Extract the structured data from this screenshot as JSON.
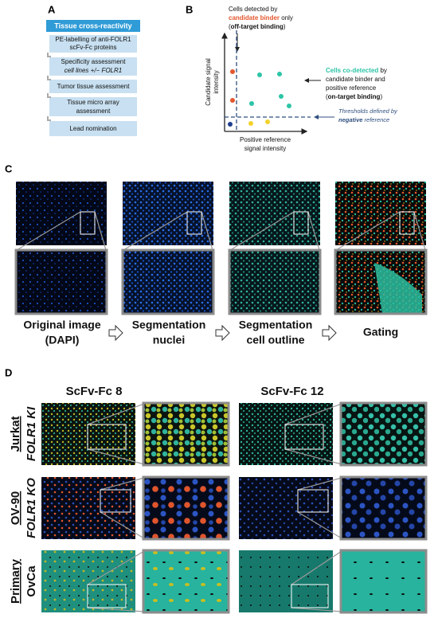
{
  "panel_a": {
    "label": "A",
    "title": "Tissue cross-reactivity",
    "steps": [
      [
        "PE-labelling of anti-FOLR1",
        "scFv-Fc proteins"
      ],
      [
        "Specificity assessment",
        "cell lines +/− FOLR1"
      ],
      [
        "Tumor tissue assessment"
      ],
      [
        "Tissue micro array",
        "assessment"
      ],
      [
        "Lead nomination"
      ]
    ]
  },
  "panel_b": {
    "label": "B",
    "off_target": {
      "line1": "Cells detected by",
      "line2a": "candidate binder",
      "line2b": " only",
      "line3a": "(",
      "line3b": "off-target binding",
      "line3c": ")"
    },
    "on_target": {
      "line1a": "Cells co-detected",
      "line1b": " by",
      "line2": "candidate binder and",
      "line3": "positive reference",
      "line4a": "(",
      "line4b": "on-target binding",
      "line4c": ")"
    },
    "threshold": {
      "line1": "Thresholds defined by",
      "line2a": "negative",
      "line2b": " reference"
    },
    "y_axis": [
      "Candidate signal",
      "intensity"
    ],
    "x_axis": [
      "Positive reference",
      "signal intensity"
    ]
  },
  "panel_c": {
    "label": "C",
    "steps": [
      [
        "Original image",
        "(DAPI)"
      ],
      [
        "Segmentation",
        "nuclei"
      ],
      [
        "Segmentation",
        "cell outline"
      ],
      [
        "Gating"
      ]
    ]
  },
  "panel_d": {
    "label": "D",
    "columns": [
      "ScFv-Fc 8",
      "ScFv-Fc 12"
    ],
    "rows": [
      [
        "Jurkat",
        "FOLR1 KI"
      ],
      [
        "OV-90",
        "FOLR1 KO"
      ],
      [
        "Primary",
        "OvCa"
      ]
    ]
  }
}
